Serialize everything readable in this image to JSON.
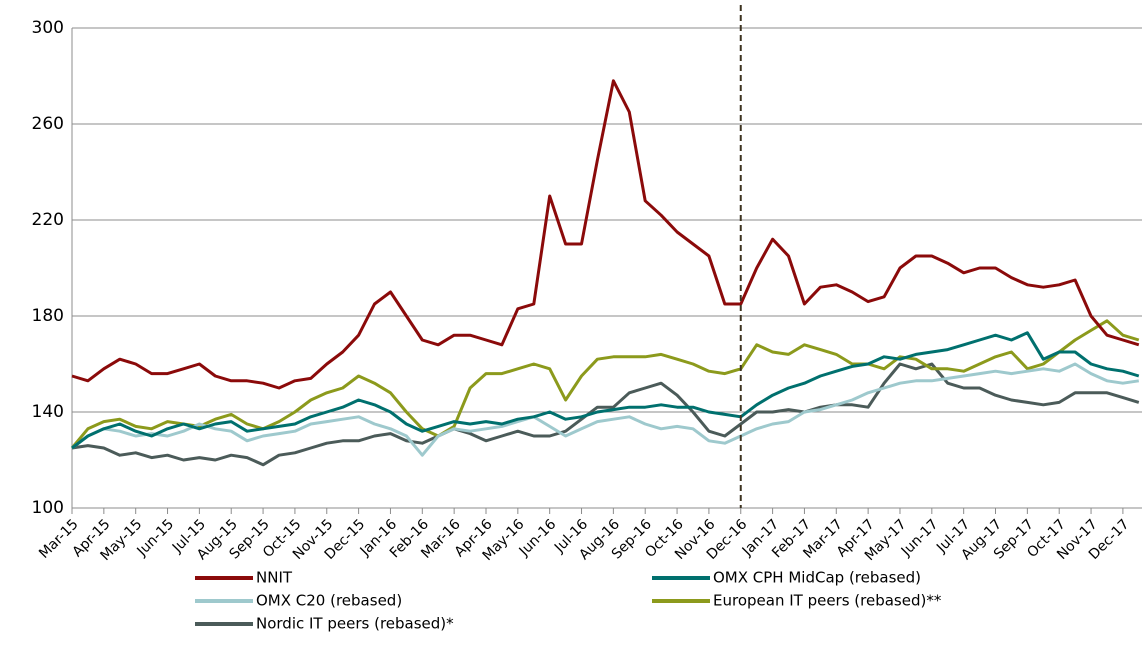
{
  "chart_data": {
    "type": "line",
    "x": [
      0,
      0.5,
      1,
      1.5,
      2,
      2.5,
      3,
      3.5,
      4,
      4.5,
      5,
      5.5,
      6,
      6.5,
      7,
      7.5,
      8,
      8.5,
      9,
      9.5,
      10,
      10.5,
      11,
      11.5,
      12,
      12.5,
      13,
      13.5,
      14,
      14.5,
      15,
      15.5,
      16,
      16.5,
      17,
      17.5,
      18,
      18.5,
      19,
      19.5,
      20,
      20.5,
      21,
      21.5,
      22,
      22.5,
      23,
      23.5,
      24,
      24.5,
      25,
      25.5,
      26,
      26.5,
      27,
      27.5,
      28,
      28.5,
      29,
      29.5,
      30,
      30.5,
      31,
      31.5,
      32,
      32.5,
      33,
      33.5
    ],
    "xlim": [
      0,
      33.6
    ],
    "xticks": [
      {
        "value": 0,
        "label": "Mar-15"
      },
      {
        "value": 1,
        "label": "Apr-15"
      },
      {
        "value": 2,
        "label": "May-15"
      },
      {
        "value": 3,
        "label": "Jun-15"
      },
      {
        "value": 4,
        "label": "Jul-15"
      },
      {
        "value": 5,
        "label": "Aug-15"
      },
      {
        "value": 6,
        "label": "Sep-15"
      },
      {
        "value": 7,
        "label": "Oct-15"
      },
      {
        "value": 8,
        "label": "Nov-15"
      },
      {
        "value": 9,
        "label": "Dec-15"
      },
      {
        "value": 10,
        "label": "Jan-16"
      },
      {
        "value": 11,
        "label": "Feb-16"
      },
      {
        "value": 12,
        "label": "Mar-16"
      },
      {
        "value": 13,
        "label": "Apr-16"
      },
      {
        "value": 14,
        "label": "May-16"
      },
      {
        "value": 15,
        "label": "Jun-16"
      },
      {
        "value": 16,
        "label": "Jul-16"
      },
      {
        "value": 17,
        "label": "Aug-16"
      },
      {
        "value": 18,
        "label": "Sep-16"
      },
      {
        "value": 19,
        "label": "Oct-16"
      },
      {
        "value": 20,
        "label": "Nov-16"
      },
      {
        "value": 21,
        "label": "Dec-16"
      },
      {
        "value": 22,
        "label": "Jan-17"
      },
      {
        "value": 23,
        "label": "Feb-17"
      },
      {
        "value": 24,
        "label": "Mar-17"
      },
      {
        "value": 25,
        "label": "Apr-17"
      },
      {
        "value": 26,
        "label": "May-17"
      },
      {
        "value": 27,
        "label": "Jun-17"
      },
      {
        "value": 28,
        "label": "Jul-17"
      },
      {
        "value": 29,
        "label": "Aug-17"
      },
      {
        "value": 30,
        "label": "Sep-17"
      },
      {
        "value": 31,
        "label": "Oct-17"
      },
      {
        "value": 32,
        "label": "Nov-17"
      },
      {
        "value": 33,
        "label": "Dec-17"
      }
    ],
    "ylim": [
      100,
      300
    ],
    "yticks": [
      100,
      140,
      180,
      220,
      260,
      300
    ],
    "grid": true,
    "vline": 21,
    "series": [
      {
        "name": "NNIT",
        "color": "#8b0a0a",
        "values": [
          155,
          153,
          158,
          162,
          160,
          156,
          156,
          158,
          160,
          155,
          153,
          153,
          152,
          150,
          153,
          154,
          160,
          165,
          172,
          185,
          190,
          180,
          170,
          168,
          172,
          172,
          170,
          168,
          183,
          185,
          230,
          210,
          210,
          245,
          278,
          265,
          228,
          222,
          215,
          210,
          205,
          185,
          185,
          200,
          212,
          205,
          185,
          192,
          193,
          190,
          186,
          188,
          200,
          205,
          205,
          202,
          198,
          200,
          200,
          196,
          193,
          192,
          193,
          195,
          180,
          172,
          170,
          168
        ]
      },
      {
        "name": "OMX CPH MidCap (rebased)",
        "color": "#00706e",
        "values": [
          125,
          130,
          133,
          135,
          132,
          130,
          133,
          135,
          133,
          135,
          136,
          132,
          133,
          134,
          135,
          138,
          140,
          142,
          145,
          143,
          140,
          135,
          132,
          134,
          136,
          135,
          136,
          135,
          137,
          138,
          140,
          137,
          138,
          140,
          141,
          142,
          142,
          143,
          142,
          142,
          140,
          139,
          138,
          143,
          147,
          150,
          152,
          155,
          157,
          159,
          160,
          163,
          162,
          164,
          165,
          166,
          168,
          170,
          172,
          170,
          173,
          162,
          165,
          165,
          160,
          158,
          157,
          155
        ]
      },
      {
        "name": "OMX C20 (rebased)",
        "color": "#9ec9cd",
        "values": [
          125,
          130,
          133,
          132,
          130,
          131,
          130,
          132,
          135,
          133,
          132,
          128,
          130,
          131,
          132,
          135,
          136,
          137,
          138,
          135,
          133,
          130,
          122,
          130,
          133,
          132,
          133,
          134,
          136,
          138,
          134,
          130,
          133,
          136,
          137,
          138,
          135,
          133,
          134,
          133,
          128,
          127,
          130,
          133,
          135,
          136,
          140,
          141,
          143,
          145,
          148,
          150,
          152,
          153,
          153,
          154,
          155,
          156,
          157,
          156,
          157,
          158,
          157,
          160,
          156,
          153,
          152,
          153
        ]
      },
      {
        "name": "European IT peers (rebased)**",
        "color": "#8c9a1c",
        "values": [
          125,
          133,
          136,
          137,
          134,
          133,
          136,
          135,
          134,
          137,
          139,
          135,
          133,
          136,
          140,
          145,
          148,
          150,
          155,
          152,
          148,
          140,
          133,
          130,
          134,
          150,
          156,
          156,
          158,
          160,
          158,
          145,
          155,
          162,
          163,
          163,
          163,
          164,
          162,
          160,
          157,
          156,
          158,
          168,
          165,
          164,
          168,
          166,
          164,
          160,
          160,
          158,
          163,
          162,
          158,
          158,
          157,
          160,
          163,
          165,
          158,
          160,
          165,
          170,
          174,
          178,
          172,
          170
        ]
      },
      {
        "name": "Nordic IT peers (rebased)*",
        "color": "#4b5b59",
        "values": [
          125,
          126,
          125,
          122,
          123,
          121,
          122,
          120,
          121,
          120,
          122,
          121,
          118,
          122,
          123,
          125,
          127,
          128,
          128,
          130,
          131,
          128,
          127,
          130,
          133,
          131,
          128,
          130,
          132,
          130,
          130,
          132,
          137,
          142,
          142,
          148,
          150,
          152,
          147,
          140,
          132,
          130,
          135,
          140,
          140,
          141,
          140,
          142,
          143,
          143,
          142,
          152,
          160,
          158,
          160,
          152,
          150,
          150,
          147,
          145,
          144,
          143,
          144,
          148,
          148,
          148,
          146,
          144
        ]
      }
    ]
  }
}
